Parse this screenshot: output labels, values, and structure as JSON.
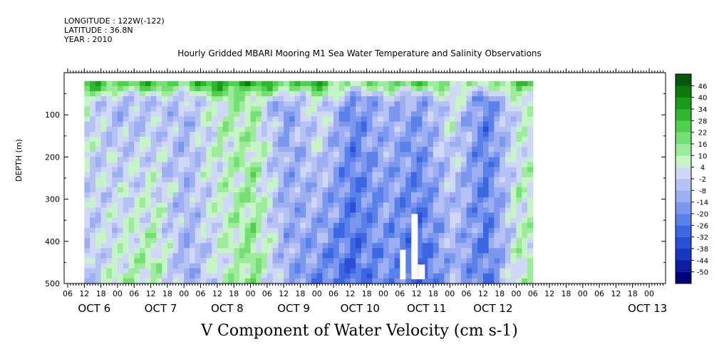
{
  "meta": {
    "longitude": "LONGITUDE : 122W(-122)",
    "latitude": "LATITUDE : 36.8N",
    "year": "YEAR : 2010"
  },
  "title": "Hourly Gridded MBARI Mooring M1 Sea Water Temperature and Salinity Observations",
  "chart_data": {
    "type": "heatmap",
    "title": "V Component of Water Velocity (cm s-1)",
    "ylabel": "DEPTH (m)",
    "ylim": [
      500,
      0
    ],
    "yticks": [
      100,
      200,
      300,
      400,
      500
    ],
    "x_hour_ticks": [
      "06",
      "12",
      "18",
      "00",
      "06",
      "12",
      "18",
      "00",
      "06",
      "12",
      "18",
      "00",
      "06",
      "12",
      "18",
      "00",
      "06",
      "12",
      "18",
      "00",
      "06",
      "12",
      "18",
      "00",
      "06",
      "12",
      "18",
      "00",
      "06",
      "12",
      "18",
      "00",
      "06",
      "12",
      "18",
      "00"
    ],
    "x_day_labels": [
      "OCT 6",
      "OCT 7",
      "OCT 8",
      "OCT 9",
      "OCT 10",
      "OCT 11",
      "OCT 12",
      "OCT 13"
    ],
    "colorbar": {
      "levels": [
        -50,
        -44,
        -38,
        -32,
        -26,
        -20,
        -14,
        -8,
        -2,
        4,
        10,
        16,
        22,
        28,
        34,
        40,
        46
      ],
      "colors": [
        "#00007a",
        "#0c1ea0",
        "#1a36c0",
        "#2a4fd6",
        "#3d66e2",
        "#5a80ea",
        "#7c98ee",
        "#9daff2",
        "#b6c2f4",
        "#cfd8f6",
        "#c6f4c6",
        "#9cec9c",
        "#74e074",
        "#4fd04f",
        "#2fb82f",
        "#1a9a1a",
        "#0b7a0b",
        "#05580a"
      ]
    },
    "x_range": [
      "OCT 6 06",
      "OCT 13 06"
    ],
    "depth_range_m": [
      20,
      490
    ],
    "columns": [
      {
        "time": "OCT 6 12",
        "surface": 30,
        "upper": 4,
        "deep": -6
      },
      {
        "time": "OCT 7 00",
        "surface": 22,
        "upper": -8,
        "deep": 8
      },
      {
        "time": "OCT 7 12",
        "surface": 26,
        "upper": -4,
        "deep": 12
      },
      {
        "time": "OCT 8 00",
        "surface": 20,
        "upper": -6,
        "deep": -10
      },
      {
        "time": "OCT 8 12",
        "surface": 34,
        "upper": 8,
        "deep": 4
      },
      {
        "time": "OCT 9 00",
        "surface": 30,
        "upper": 10,
        "deep": 16
      },
      {
        "time": "OCT 9 12",
        "surface": 24,
        "upper": -14,
        "deep": -10
      },
      {
        "time": "OCT 10 00",
        "surface": 28,
        "upper": 6,
        "deep": -20
      },
      {
        "time": "OCT 10 12",
        "surface": 10,
        "upper": -20,
        "deep": -28
      },
      {
        "time": "OCT 11 00",
        "surface": 18,
        "upper": -8,
        "deep": -18
      },
      {
        "time": "OCT 11 12",
        "surface": 22,
        "upper": -14,
        "deep": -30
      },
      {
        "time": "OCT 12 00",
        "surface": 12,
        "upper": 4,
        "deep": -10
      },
      {
        "time": "OCT 12 12",
        "surface": 8,
        "upper": -22,
        "deep": -24
      },
      {
        "time": "OCT 13 00",
        "surface": 26,
        "upper": 4,
        "deep": 8
      }
    ]
  }
}
